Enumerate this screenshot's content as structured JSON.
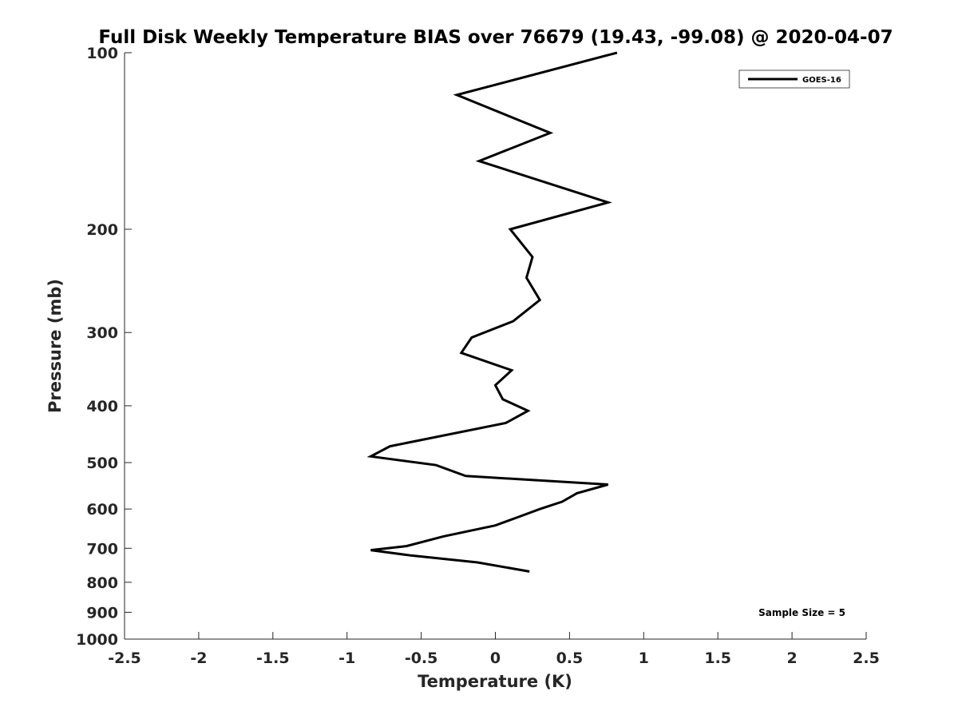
{
  "chart_data": {
    "type": "line",
    "title": "Full Disk Weekly Temperature BIAS over 76679 (19.43, -99.08) @ 2020-04-07",
    "xlabel": "Temperature (K)",
    "ylabel": "Pressure (mb)",
    "xlim": [
      -2.5,
      2.5
    ],
    "ylim": [
      100,
      1000
    ],
    "y_scale": "log",
    "y_reversed": true,
    "x_ticks": [
      "-2.5",
      "-2",
      "-1.5",
      "-1",
      "-0.5",
      "0",
      "0.5",
      "1",
      "1.5",
      "2",
      "2.5"
    ],
    "y_ticks": [
      "100",
      "200",
      "300",
      "400",
      "500",
      "600",
      "700",
      "800",
      "900",
      "1000"
    ],
    "grid": false,
    "legend_position": "top-right",
    "series": [
      {
        "name": "GOES-16",
        "color": "#000000",
        "x": [
          0.82,
          -0.26,
          0.37,
          -0.11,
          0.76,
          0.1,
          0.25,
          0.21,
          0.3,
          0.12,
          -0.16,
          -0.23,
          0.11,
          0.0,
          0.05,
          0.22,
          0.07,
          -0.71,
          -0.84,
          -0.4,
          -0.2,
          0.76,
          0.55,
          0.45,
          0.3,
          0.17,
          0.0,
          -0.35,
          -0.6,
          -0.84,
          -0.57,
          -0.12,
          0.23
        ],
        "y": [
          100,
          118,
          137,
          153,
          180,
          200,
          223,
          242,
          264,
          287,
          306,
          325,
          348,
          369,
          390,
          408,
          428,
          469,
          488,
          505,
          527,
          545,
          564,
          583,
          600,
          617,
          640,
          668,
          694,
          705,
          720,
          740,
          767
        ]
      }
    ],
    "annotations": [
      "Sample Size = 5"
    ]
  }
}
